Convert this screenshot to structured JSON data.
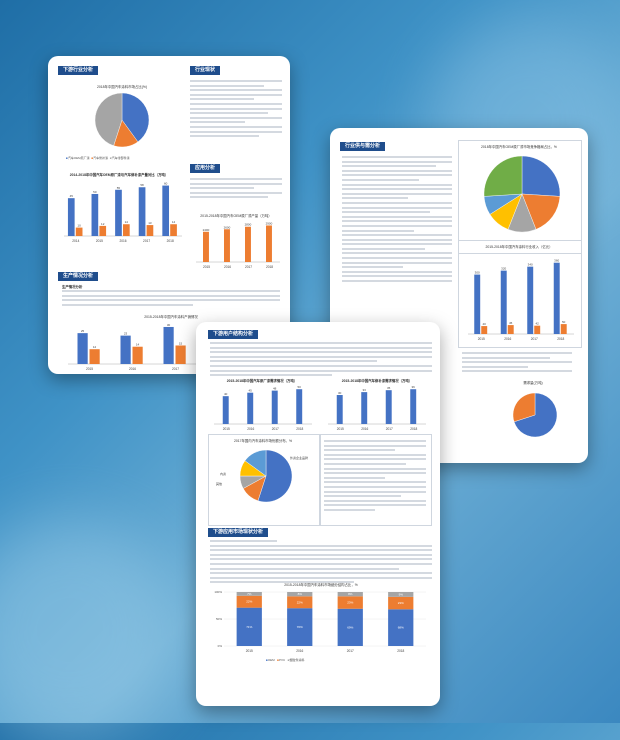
{
  "page1": {
    "sections": {
      "downstream": "下游行业分析",
      "industry_status": "行业现状",
      "application": "应用分析",
      "production": "生产情况分析"
    },
    "pie_title": "2018年中国汽车涂料市场占比(%)",
    "pie_legend": [
      "汽车OEM原厂漆",
      "汽车修补漆",
      "汽车零部件漆"
    ],
    "bar_title": "2014-2018年中国汽车OEM原厂漆与汽车修补漆产量对比（万吨）",
    "bar_legend": [
      "汽车原厂漆",
      "汽车修补漆"
    ],
    "bar_line_title": "2015-2018年中国汽车涂料产销情况",
    "bar_line_legend": [
      "产量",
      "需求量"
    ],
    "mini_bar_title": "2015-2018年中国汽车OEM原厂漆产量（万吨）",
    "sub_label": "生产情况分析"
  },
  "page2": {
    "section": "行业供与需分析",
    "pie_title": "2018年中国汽车OEM原厂漆市场竞争格局占比，%",
    "bar_title": "2015-2018年中国汽车涂料行业收入（亿元）",
    "sub_title": "需求量(万吨)"
  },
  "page3": {
    "section1": "下游用户结构分析",
    "section2": "下游应用市场现状分析",
    "chart1_title": "2015-2018年中国汽车原厂漆需求情况（万吨）",
    "chart2_title": "2015-2018年中国汽车修补漆需求情况（万吨）",
    "pie_title": "2017年国内汽车涂料市场份额分布，%",
    "stack_title": "2015-2018年中国汽车涂料市场细分结构占比，%",
    "stack_legend": [
      "OEM",
      "PVC",
      "塑胶件涂料"
    ],
    "pie_labels": [
      "外资企业品牌",
      "内资",
      "其他",
      "中小企业",
      "合资企业"
    ]
  },
  "chart_data": [
    {
      "type": "pie",
      "title": "2018年中国汽车涂料市场占比(%)",
      "labels": [
        "汽车OEM原厂漆",
        "汽车修补漆",
        "汽车零部件漆"
      ],
      "values": [
        40,
        15,
        45
      ]
    },
    {
      "type": "bar",
      "title": "2014-2018年中国汽车OEM原厂漆与汽车修补漆产量对比（万吨）",
      "categories": [
        "2014",
        "2015",
        "2016",
        "2017",
        "2018"
      ],
      "series": [
        {
          "name": "汽车原厂漆",
          "values": [
            45,
            50,
            55,
            58,
            60
          ]
        },
        {
          "name": "汽车修补漆",
          "values": [
            10,
            12,
            14,
            13,
            14
          ]
        }
      ]
    },
    {
      "type": "bar",
      "title": "2015-2018年中国汽车涂料产销情况",
      "categories": [
        "2015",
        "2016",
        "2017",
        "2018"
      ],
      "series": [
        {
          "name": "产量",
          "values": [
            25,
            23,
            30,
            31
          ]
        },
        {
          "name": "需求量",
          "values": [
            12,
            14,
            15,
            16
          ]
        }
      ]
    },
    {
      "type": "bar",
      "title": "2015-2018年中国汽车OEM原厂漆产量（万吨）",
      "categories": [
        "2015",
        "2016",
        "2017",
        "2018"
      ],
      "values": [
        2400,
        2600,
        2800,
        2900
      ]
    },
    {
      "type": "pie",
      "title": "2018年中国汽车OEM原厂漆市场竞争格局占比，%",
      "labels": [
        "巴斯夫",
        "关西",
        "PPG",
        "艾仕得",
        "立邦",
        "其他"
      ],
      "values": [
        26,
        18,
        12,
        10,
        8,
        26
      ]
    },
    {
      "type": "bar",
      "title": "2015-2018年中国汽车涂料行业收入（亿元）",
      "categories": [
        "2015",
        "2016",
        "2017",
        "2018"
      ],
      "series": [
        {
          "name": "收入",
          "values": [
            300,
            320,
            340,
            360
          ]
        },
        {
          "name": "增速",
          "values": [
            40,
            45,
            42,
            50
          ]
        }
      ]
    },
    {
      "type": "bar",
      "title": "2015-2018年中国汽车原厂漆需求情况（万吨）",
      "categories": [
        "2015",
        "2016",
        "2017",
        "2018"
      ],
      "values": [
        40,
        45,
        48,
        50
      ]
    },
    {
      "type": "bar",
      "title": "2015-2018年中国汽车修补漆需求情况（万吨）",
      "categories": [
        "2015",
        "2016",
        "2017",
        "2018"
      ],
      "values": [
        30,
        33,
        35,
        36
      ]
    },
    {
      "type": "pie",
      "title": "2017年国内汽车涂料市场份额分布，%",
      "labels": [
        "外资企业品牌",
        "内资",
        "其他",
        "中小企业",
        "合资企业"
      ],
      "values": [
        55,
        12,
        8,
        10,
        15
      ]
    },
    {
      "type": "bar",
      "title": "2015-2018年中国汽车涂料市场细分结构占比，%",
      "categories": [
        "2015",
        "2016",
        "2017",
        "2018"
      ],
      "series": [
        {
          "name": "OEM",
          "values": [
            71,
            70,
            69,
            68
          ]
        },
        {
          "name": "PVC",
          "values": [
            22,
            22,
            23,
            23
          ]
        },
        {
          "name": "塑胶件涂料",
          "values": [
            7,
            8,
            8,
            9
          ]
        }
      ]
    }
  ]
}
